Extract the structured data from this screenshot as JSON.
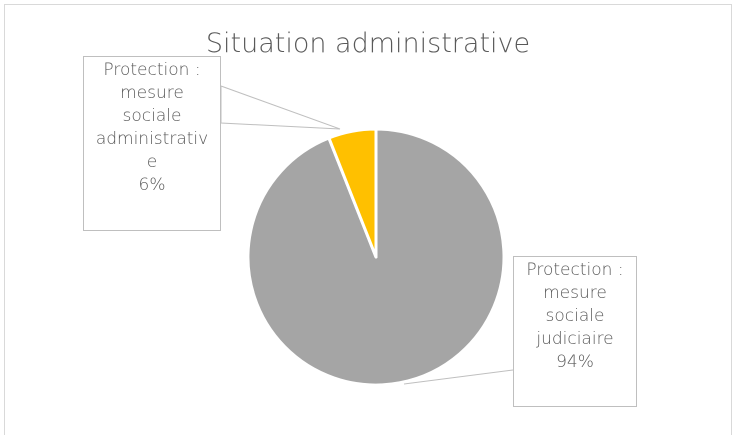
{
  "chart_data": {
    "type": "pie",
    "title": "Situation administrative",
    "slices": [
      {
        "name": "Protection : mesure sociale judiciaire",
        "label_lines": [
          "Protection :",
          "mesure",
          "sociale",
          "judiciaire",
          "94%"
        ],
        "value": 94,
        "color": "#a5a5a5"
      },
      {
        "name": "Protection : mesure sociale administrative",
        "label_lines": [
          "Protection :",
          "mesure",
          "sociale",
          "administrativ",
          "e",
          "6%"
        ],
        "value": 6,
        "color": "#ffc000"
      }
    ],
    "legend": "none",
    "data_labels": "callouts",
    "start_angle_deg": 0,
    "direction": "clockwise",
    "slice_border_color": "#ffffff",
    "leader_color": "#bfbfbf",
    "label_border_color": "#bfbfbf"
  }
}
